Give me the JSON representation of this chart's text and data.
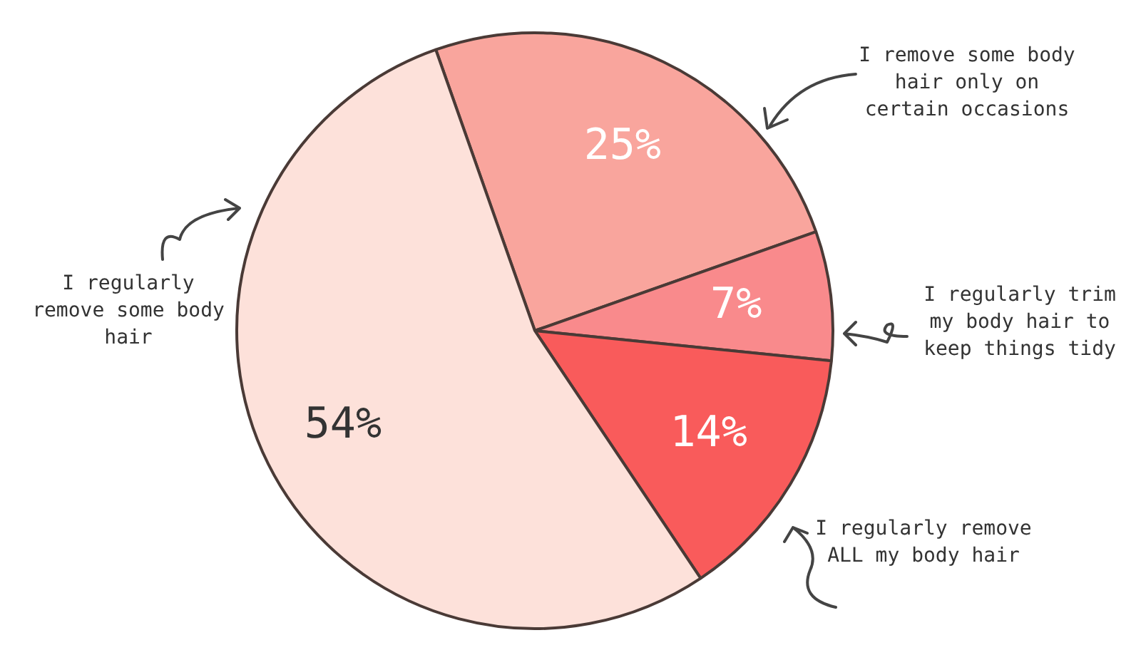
{
  "chart_data": {
    "type": "pie",
    "categories": [
      "I remove some body hair only on certain occasions",
      "I regularly trim my body hair to keep things tidy",
      "I regularly remove ALL my body hair",
      "I regularly remove some body hair"
    ],
    "values": [
      25,
      7,
      14,
      54
    ],
    "value_labels": [
      "25%",
      "7%",
      "14%",
      "54%"
    ],
    "colors": [
      "#f9a59d",
      "#f98a8c",
      "#f95b5b",
      "#fde1da"
    ],
    "legend": false
  }
}
